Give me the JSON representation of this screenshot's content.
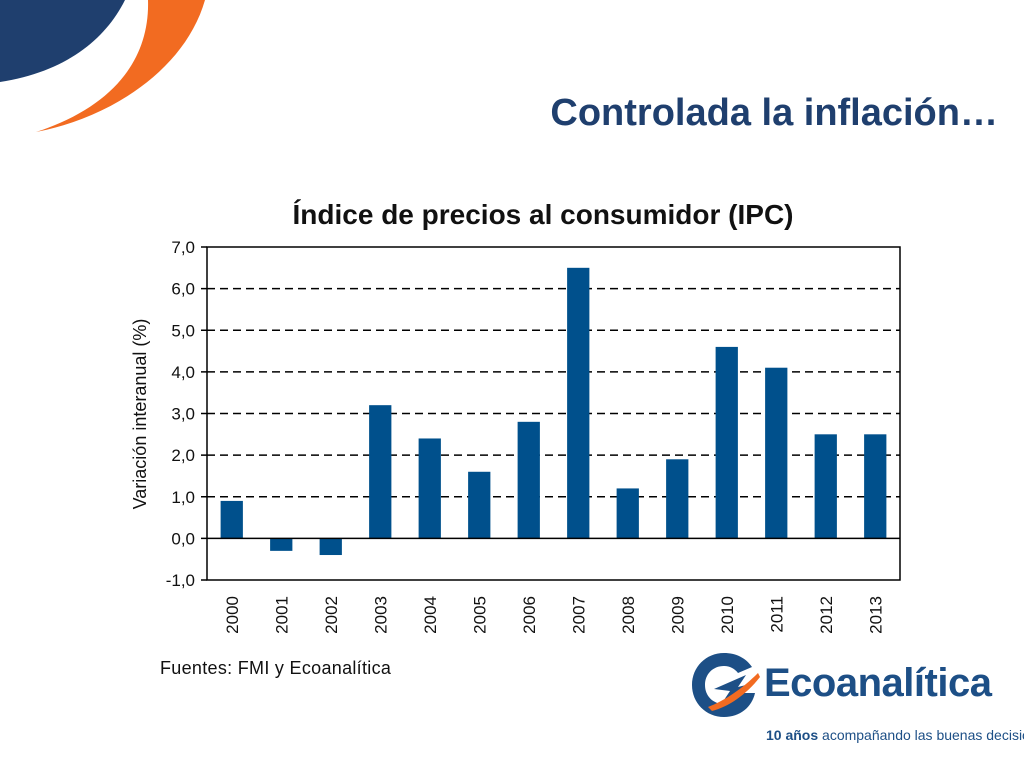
{
  "slide": {
    "title": "Controlada la inflación…",
    "source_note": "Fuentes: FMI y Ecoanalítica",
    "colors": {
      "title": "#1f3f6e",
      "bar": "#00508c",
      "accent_orange": "#f26b21",
      "accent_navy": "#1f3f6e"
    }
  },
  "logo": {
    "name": "Ecoanalítica",
    "tagline_bold": "10 años",
    "tagline_rest": " acompañando las buenas decisiones",
    "icon": "ecoanalitica-logo-mark-icon"
  },
  "chart_data": {
    "type": "bar",
    "title": "Índice de precios al consumidor (IPC)",
    "xlabel": "",
    "ylabel": "Variación interanual  (%)",
    "categories": [
      "2000",
      "2001",
      "2002",
      "2003",
      "2004",
      "2005",
      "2006",
      "2007",
      "2008",
      "2009",
      "2010",
      "2011",
      "2012",
      "2013"
    ],
    "values": [
      0.9,
      -0.3,
      -0.4,
      3.2,
      2.4,
      1.6,
      2.8,
      6.5,
      1.2,
      1.9,
      4.6,
      4.1,
      2.5,
      2.5
    ],
    "ylim": [
      -1,
      7
    ],
    "yticks": [
      "-1,0",
      "0,0",
      "1,0",
      "2,0",
      "3,0",
      "4,0",
      "5,0",
      "6,0",
      "7,0"
    ],
    "grid": true,
    "legend": "none",
    "bar_color": "#00508c"
  }
}
